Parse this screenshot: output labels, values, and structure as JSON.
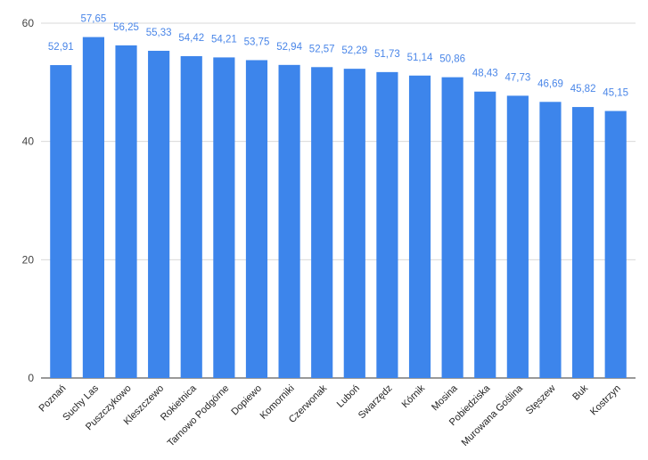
{
  "chart_data": {
    "type": "bar",
    "title": "",
    "xlabel": "",
    "ylabel": "",
    "ylim": [
      0,
      60
    ],
    "yticks": [
      0,
      20,
      40,
      60
    ],
    "grid": true,
    "bar_color": "#3d85eb",
    "label_color": "#4a86e8",
    "categories": [
      "Poznań",
      "Suchy Las",
      "Puszczykowo",
      "Kleszczewo",
      "Rokietnica",
      "Tarnowo Podgórne",
      "Dopiewo",
      "Komorniki",
      "Czerwonak",
      "Luboń",
      "Swarzędz",
      "Kórnik",
      "Mosina",
      "Pobiedziska",
      "Murowana Goślina",
      "Stęszew",
      "Buk",
      "Kostrzyn"
    ],
    "values": [
      52.91,
      57.65,
      56.25,
      55.33,
      54.42,
      54.21,
      53.75,
      52.94,
      52.57,
      52.29,
      51.73,
      51.14,
      50.86,
      48.43,
      47.73,
      46.69,
      45.82,
      45.15
    ],
    "data_labels": [
      "52,91",
      "57,65",
      "56,25",
      "55,33",
      "54,42",
      "54,21",
      "53,75",
      "52,94",
      "52,57",
      "52,29",
      "51,73",
      "51,14",
      "50,86",
      "48,43",
      "47,73",
      "46,69",
      "45,82",
      "45,15"
    ]
  }
}
